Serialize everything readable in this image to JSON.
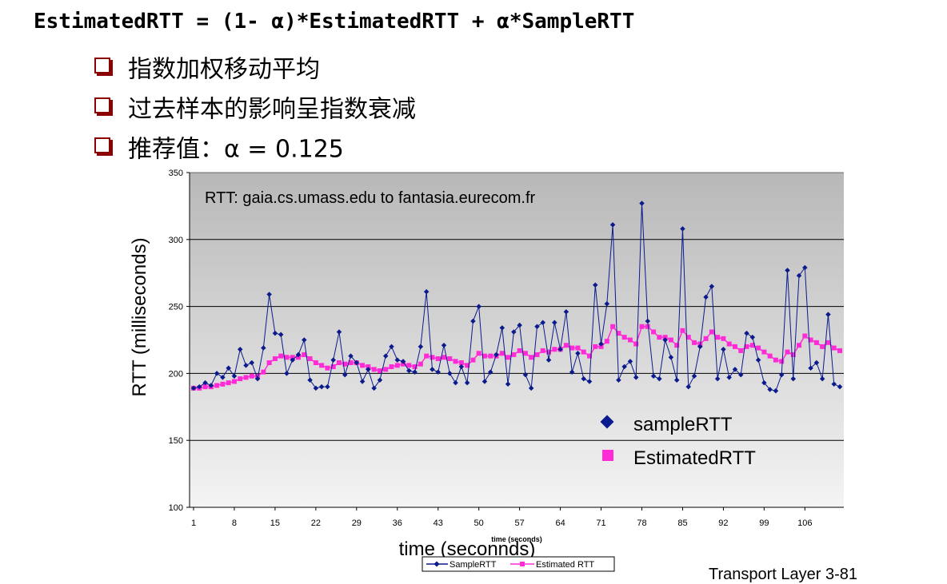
{
  "slide": {
    "formula": "EstimatedRTT = (1- α)*EstimatedRTT + α*SampleRTT",
    "bullets": [
      "指数加权移动平均",
      "过去样本的影响呈指数衰减",
      "推荐值：α = 0.125"
    ],
    "footer": "Transport Layer   3-81"
  },
  "colors": {
    "bullet_box": "#8b0000",
    "sample_series": "#0b1a8c",
    "estimated_series": "#ff2bd6",
    "plot_top": "#b8b8b8",
    "plot_bottom": "#f4f4f4"
  },
  "chart_data": {
    "type": "line",
    "title": "RTT: gaia.cs.umass.edu to fantasia.eurecom.fr",
    "xlabel": "time (seconnds)",
    "xlabel_small": "time (seconds)",
    "ylabel": "RTT (milliseconds)",
    "ylim": [
      100,
      350
    ],
    "y_ticks": [
      100,
      150,
      200,
      250,
      300,
      350
    ],
    "x_ticks": [
      1,
      8,
      15,
      22,
      29,
      36,
      43,
      50,
      57,
      64,
      71,
      78,
      85,
      92,
      99,
      106
    ],
    "xlim": [
      1,
      112
    ],
    "grid": true,
    "legend_inside": [
      "sampleRTT",
      "EstimatedRTT"
    ],
    "legend_bottom": [
      "SampleRTT",
      "Estimated RTT"
    ],
    "series": [
      {
        "name": "sampleRTT",
        "x": [
          1,
          2,
          3,
          4,
          5,
          6,
          7,
          8,
          9,
          10,
          11,
          12,
          13,
          14,
          15,
          16,
          17,
          18,
          19,
          20,
          21,
          22,
          23,
          24,
          25,
          26,
          27,
          28,
          29,
          30,
          31,
          32,
          33,
          34,
          35,
          36,
          37,
          38,
          39,
          40,
          41,
          42,
          43,
          44,
          45,
          46,
          47,
          48,
          49,
          50,
          51,
          52,
          53,
          54,
          55,
          56,
          57,
          58,
          59,
          60,
          61,
          62,
          63,
          64,
          65,
          66,
          67,
          68,
          69,
          70,
          71,
          72,
          73,
          74,
          75,
          76,
          77,
          78,
          79,
          80,
          81,
          82,
          83,
          84,
          85,
          86,
          87,
          88,
          89,
          90,
          91,
          92,
          93,
          94,
          95,
          96,
          97,
          98,
          99,
          100,
          101,
          102,
          103,
          104,
          105,
          106,
          107,
          108,
          109,
          110,
          111,
          112
        ],
        "values": [
          189,
          190,
          193,
          191,
          200,
          197,
          204,
          198,
          218,
          206,
          208,
          196,
          219,
          259,
          230,
          229,
          200,
          210,
          214,
          225,
          195,
          189,
          190,
          190,
          210,
          231,
          199,
          213,
          208,
          194,
          203,
          189,
          195,
          213,
          220,
          210,
          209,
          202,
          201,
          220,
          261,
          203,
          201,
          221,
          200,
          193,
          205,
          193,
          239,
          250,
          194,
          201,
          214,
          234,
          192,
          231,
          236,
          199,
          189,
          235,
          238,
          210,
          238,
          218,
          246,
          201,
          215,
          196,
          194,
          266,
          222,
          252,
          311,
          195,
          205,
          209,
          197,
          327,
          239,
          198,
          196,
          225,
          212,
          195,
          308,
          190,
          198,
          220,
          257,
          265,
          196,
          218,
          197,
          203,
          199,
          230,
          227,
          210,
          193,
          188,
          187,
          199,
          277,
          196,
          273,
          279,
          204,
          208,
          196,
          244,
          192,
          190
        ]
      },
      {
        "name": "EstimatedRTT",
        "x": [
          1,
          2,
          3,
          4,
          5,
          6,
          7,
          8,
          9,
          10,
          11,
          12,
          13,
          14,
          15,
          16,
          17,
          18,
          19,
          20,
          21,
          22,
          23,
          24,
          25,
          26,
          27,
          28,
          29,
          30,
          31,
          32,
          33,
          34,
          35,
          36,
          37,
          38,
          39,
          40,
          41,
          42,
          43,
          44,
          45,
          46,
          47,
          48,
          49,
          50,
          51,
          52,
          53,
          54,
          55,
          56,
          57,
          58,
          59,
          60,
          61,
          62,
          63,
          64,
          65,
          66,
          67,
          68,
          69,
          70,
          71,
          72,
          73,
          74,
          75,
          76,
          77,
          78,
          79,
          80,
          81,
          82,
          83,
          84,
          85,
          86,
          87,
          88,
          89,
          90,
          91,
          92,
          93,
          94,
          95,
          96,
          97,
          98,
          99,
          100,
          101,
          102,
          103,
          104,
          105,
          106,
          107,
          108,
          109,
          110,
          111,
          112
        ],
        "values": [
          189,
          189,
          190,
          190,
          191,
          192,
          193,
          194,
          196,
          197,
          198,
          198,
          201,
          208,
          211,
          213,
          212,
          212,
          212,
          214,
          211,
          208,
          206,
          204,
          205,
          208,
          207,
          208,
          208,
          206,
          205,
          203,
          202,
          203,
          205,
          206,
          207,
          206,
          205,
          207,
          213,
          212,
          211,
          212,
          211,
          209,
          208,
          206,
          210,
          215,
          213,
          213,
          213,
          215,
          212,
          214,
          217,
          215,
          212,
          214,
          217,
          216,
          218,
          218,
          221,
          219,
          219,
          216,
          213,
          220,
          220,
          224,
          235,
          230,
          227,
          225,
          222,
          235,
          235,
          231,
          227,
          227,
          225,
          221,
          232,
          227,
          223,
          222,
          226,
          231,
          227,
          226,
          222,
          220,
          217,
          220,
          221,
          219,
          216,
          213,
          210,
          209,
          216,
          214,
          221,
          228,
          225,
          223,
          220,
          223,
          219,
          217
        ]
      }
    ]
  }
}
